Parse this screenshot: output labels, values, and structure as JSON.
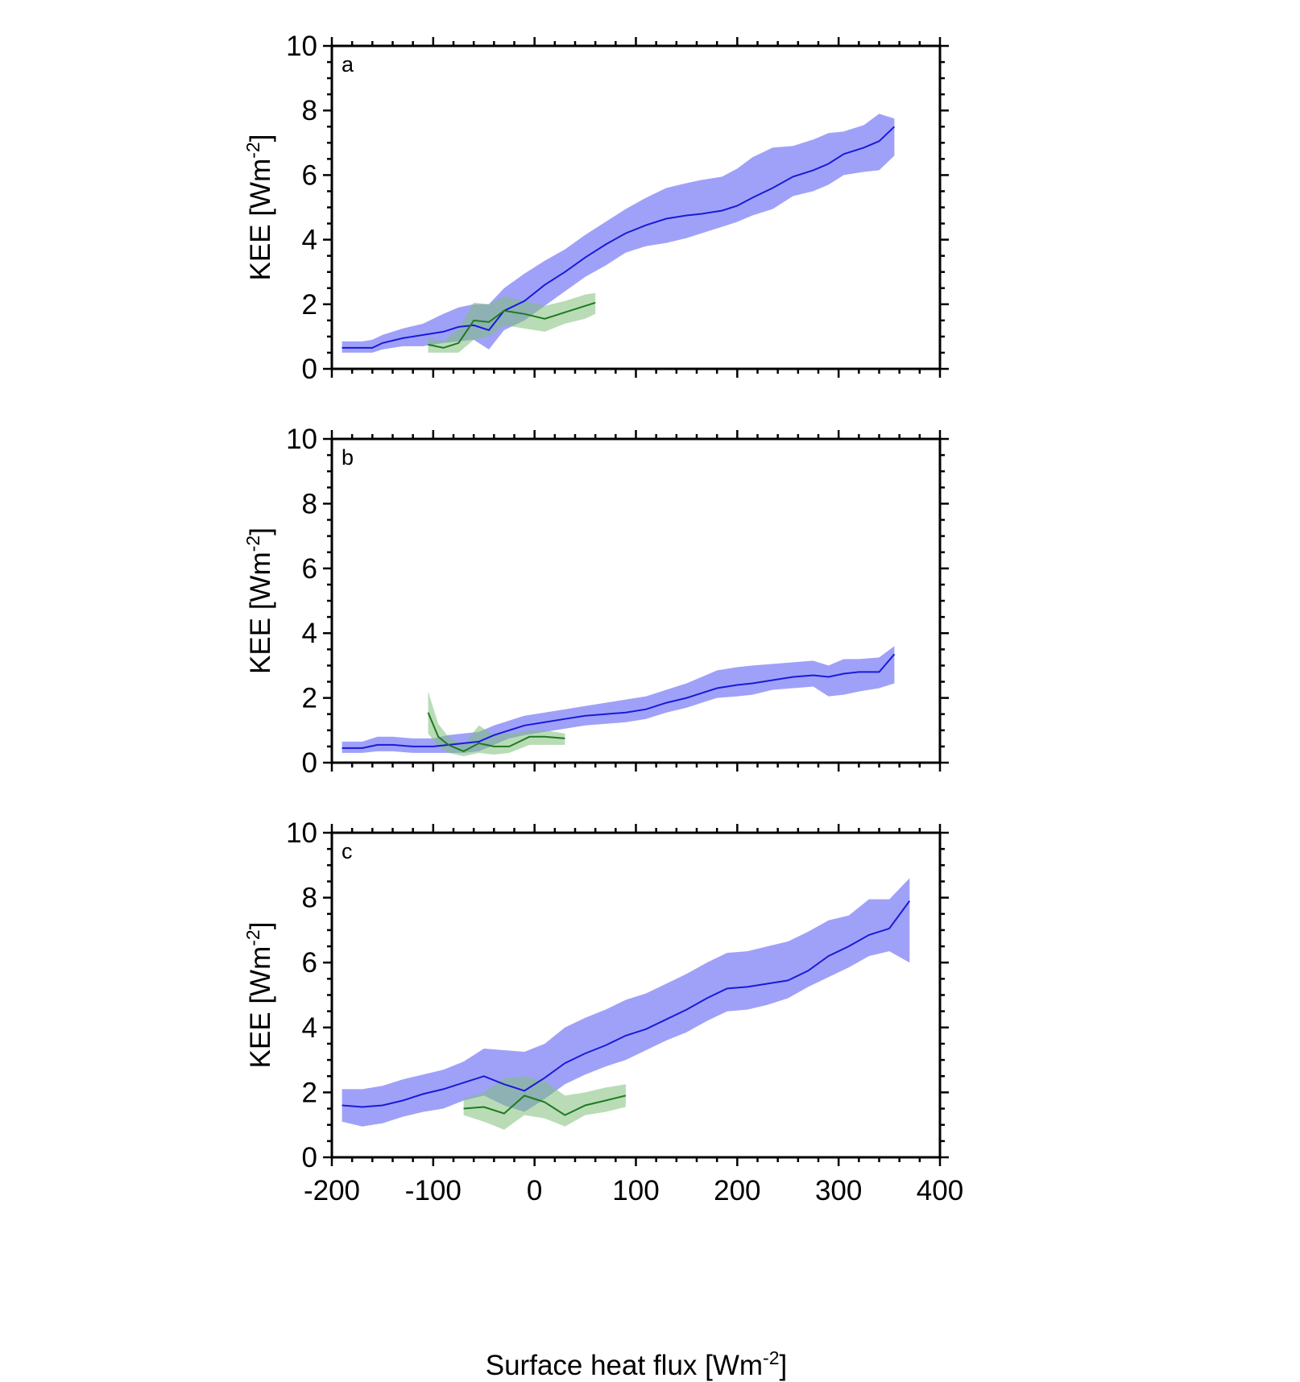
{
  "colors": {
    "blue_line": "#1a1ad9",
    "blue_band": "#9fa1f8",
    "green_line": "#1e7a1e",
    "green_band": "#7fbf7b",
    "green_band_opacity": 0.55
  },
  "figure": {
    "xlabel": "Surface heat flux [Wm",
    "xlabel_sup": "-2",
    "xlabel_end": "]",
    "ylabel": "KEE [Wm",
    "ylabel_sup": "-2",
    "ylabel_end": "]"
  },
  "chart_data": [
    {
      "type": "line",
      "panel": "a",
      "xlim": [
        -200,
        400
      ],
      "ylim": [
        0,
        10
      ],
      "xticks": [
        -200,
        -100,
        0,
        100,
        200,
        300,
        400
      ],
      "yticks": [
        0,
        2,
        4,
        6,
        8,
        10
      ],
      "series": [
        {
          "color": "blue",
          "x": [
            -190,
            -170,
            -160,
            -150,
            -130,
            -110,
            -90,
            -75,
            -60,
            -45,
            -30,
            -10,
            10,
            30,
            50,
            70,
            90,
            110,
            130,
            150,
            165,
            185,
            200,
            215,
            235,
            255,
            275,
            290,
            305,
            325,
            340,
            355
          ],
          "y": [
            0.65,
            0.65,
            0.65,
            0.8,
            0.95,
            1.05,
            1.15,
            1.3,
            1.35,
            1.2,
            1.8,
            2.1,
            2.6,
            3.0,
            3.45,
            3.85,
            4.2,
            4.45,
            4.65,
            4.75,
            4.8,
            4.9,
            5.05,
            5.3,
            5.6,
            5.95,
            6.15,
            6.35,
            6.65,
            6.85,
            7.05,
            7.5
          ],
          "lower": [
            0.5,
            0.5,
            0.5,
            0.6,
            0.7,
            0.7,
            0.8,
            0.85,
            0.9,
            0.6,
            1.2,
            1.5,
            1.95,
            2.4,
            2.85,
            3.2,
            3.6,
            3.8,
            3.9,
            4.05,
            4.2,
            4.4,
            4.55,
            4.75,
            4.95,
            5.35,
            5.5,
            5.7,
            6.0,
            6.1,
            6.15,
            6.6
          ],
          "upper": [
            0.85,
            0.85,
            0.9,
            1.05,
            1.25,
            1.4,
            1.7,
            1.9,
            2.0,
            2.0,
            2.5,
            2.95,
            3.35,
            3.7,
            4.15,
            4.55,
            4.95,
            5.3,
            5.6,
            5.75,
            5.85,
            5.95,
            6.2,
            6.55,
            6.85,
            6.9,
            7.1,
            7.3,
            7.35,
            7.55,
            7.9,
            7.75
          ]
        },
        {
          "color": "green",
          "x": [
            -105,
            -90,
            -75,
            -60,
            -45,
            -30,
            -10,
            10,
            30,
            50,
            60
          ],
          "y": [
            0.75,
            0.65,
            0.8,
            1.5,
            1.45,
            1.8,
            1.7,
            1.55,
            1.75,
            1.95,
            2.05
          ],
          "lower": [
            0.5,
            0.5,
            0.5,
            0.9,
            1.0,
            1.35,
            1.25,
            1.15,
            1.4,
            1.55,
            1.7
          ],
          "upper": [
            0.95,
            0.85,
            1.25,
            2.05,
            2.0,
            2.25,
            2.1,
            1.95,
            2.1,
            2.3,
            2.35
          ]
        }
      ]
    },
    {
      "type": "line",
      "panel": "b",
      "xlim": [
        -200,
        400
      ],
      "ylim": [
        0,
        10
      ],
      "xticks": [
        -200,
        -100,
        0,
        100,
        200,
        300,
        400
      ],
      "yticks": [
        0,
        2,
        4,
        6,
        8,
        10
      ],
      "series": [
        {
          "color": "blue",
          "x": [
            -190,
            -170,
            -155,
            -140,
            -120,
            -100,
            -85,
            -70,
            -55,
            -40,
            -25,
            -10,
            10,
            30,
            50,
            70,
            90,
            110,
            130,
            150,
            165,
            180,
            200,
            215,
            235,
            255,
            275,
            290,
            305,
            320,
            340,
            355
          ],
          "y": [
            0.45,
            0.45,
            0.55,
            0.55,
            0.5,
            0.5,
            0.55,
            0.6,
            0.65,
            0.85,
            1.0,
            1.15,
            1.25,
            1.35,
            1.45,
            1.5,
            1.55,
            1.65,
            1.85,
            2.0,
            2.15,
            2.3,
            2.4,
            2.45,
            2.55,
            2.65,
            2.7,
            2.65,
            2.75,
            2.8,
            2.8,
            3.35
          ],
          "lower": [
            0.3,
            0.3,
            0.35,
            0.35,
            0.3,
            0.3,
            0.3,
            0.3,
            0.35,
            0.55,
            0.75,
            0.85,
            0.95,
            1.05,
            1.15,
            1.2,
            1.25,
            1.35,
            1.55,
            1.7,
            1.85,
            2.0,
            2.05,
            2.1,
            2.25,
            2.3,
            2.35,
            2.05,
            2.1,
            2.2,
            2.3,
            2.45
          ],
          "upper": [
            0.65,
            0.65,
            0.8,
            0.8,
            0.75,
            0.75,
            0.85,
            0.9,
            0.95,
            1.15,
            1.3,
            1.45,
            1.55,
            1.65,
            1.75,
            1.85,
            1.95,
            2.05,
            2.25,
            2.45,
            2.65,
            2.85,
            2.95,
            3.0,
            3.05,
            3.1,
            3.15,
            3.0,
            3.2,
            3.2,
            3.25,
            3.6
          ]
        },
        {
          "color": "green",
          "x": [
            -105,
            -95,
            -85,
            -70,
            -55,
            -40,
            -25,
            -5,
            10,
            30
          ],
          "y": [
            1.55,
            0.8,
            0.55,
            0.35,
            0.6,
            0.5,
            0.5,
            0.8,
            0.8,
            0.75
          ],
          "lower": [
            0.9,
            0.5,
            0.3,
            0.2,
            0.3,
            0.25,
            0.3,
            0.55,
            0.55,
            0.55
          ],
          "upper": [
            2.2,
            1.2,
            0.8,
            0.55,
            1.15,
            0.85,
            0.9,
            1.0,
            1.0,
            0.9
          ]
        }
      ]
    },
    {
      "type": "line",
      "panel": "c",
      "xlim": [
        -200,
        400
      ],
      "ylim": [
        0,
        10
      ],
      "xticks": [
        -200,
        -100,
        0,
        100,
        200,
        300,
        400
      ],
      "yticks": [
        0,
        2,
        4,
        6,
        8,
        10
      ],
      "series": [
        {
          "color": "blue",
          "x": [
            -190,
            -170,
            -150,
            -130,
            -110,
            -90,
            -70,
            -50,
            -30,
            -10,
            10,
            30,
            50,
            70,
            90,
            110,
            130,
            150,
            170,
            190,
            210,
            230,
            250,
            270,
            290,
            310,
            330,
            350,
            370
          ],
          "y": [
            1.6,
            1.55,
            1.6,
            1.75,
            1.95,
            2.1,
            2.3,
            2.5,
            2.25,
            2.05,
            2.45,
            2.9,
            3.2,
            3.45,
            3.75,
            3.95,
            4.25,
            4.55,
            4.9,
            5.2,
            5.25,
            5.35,
            5.45,
            5.75,
            6.2,
            6.5,
            6.85,
            7.05,
            7.9
          ],
          "lower": [
            1.1,
            0.95,
            1.05,
            1.25,
            1.4,
            1.5,
            1.75,
            1.9,
            1.6,
            1.4,
            1.8,
            2.25,
            2.55,
            2.8,
            3.0,
            3.3,
            3.6,
            3.85,
            4.2,
            4.5,
            4.55,
            4.7,
            4.9,
            5.25,
            5.55,
            5.85,
            6.2,
            6.35,
            6.0
          ],
          "upper": [
            2.1,
            2.1,
            2.2,
            2.4,
            2.55,
            2.7,
            2.95,
            3.35,
            3.3,
            3.25,
            3.5,
            4.0,
            4.3,
            4.55,
            4.85,
            5.05,
            5.35,
            5.65,
            6.0,
            6.3,
            6.35,
            6.5,
            6.65,
            6.95,
            7.3,
            7.45,
            7.95,
            7.95,
            8.6
          ]
        },
        {
          "color": "green",
          "x": [
            -70,
            -50,
            -30,
            -10,
            10,
            30,
            50,
            70,
            90
          ],
          "y": [
            1.5,
            1.55,
            1.35,
            1.9,
            1.7,
            1.3,
            1.6,
            1.75,
            1.9
          ],
          "lower": [
            1.3,
            1.1,
            0.85,
            1.3,
            1.2,
            0.95,
            1.3,
            1.4,
            1.55
          ],
          "upper": [
            1.8,
            2.0,
            2.45,
            2.5,
            2.35,
            1.9,
            2.0,
            2.15,
            2.25
          ]
        }
      ]
    }
  ]
}
